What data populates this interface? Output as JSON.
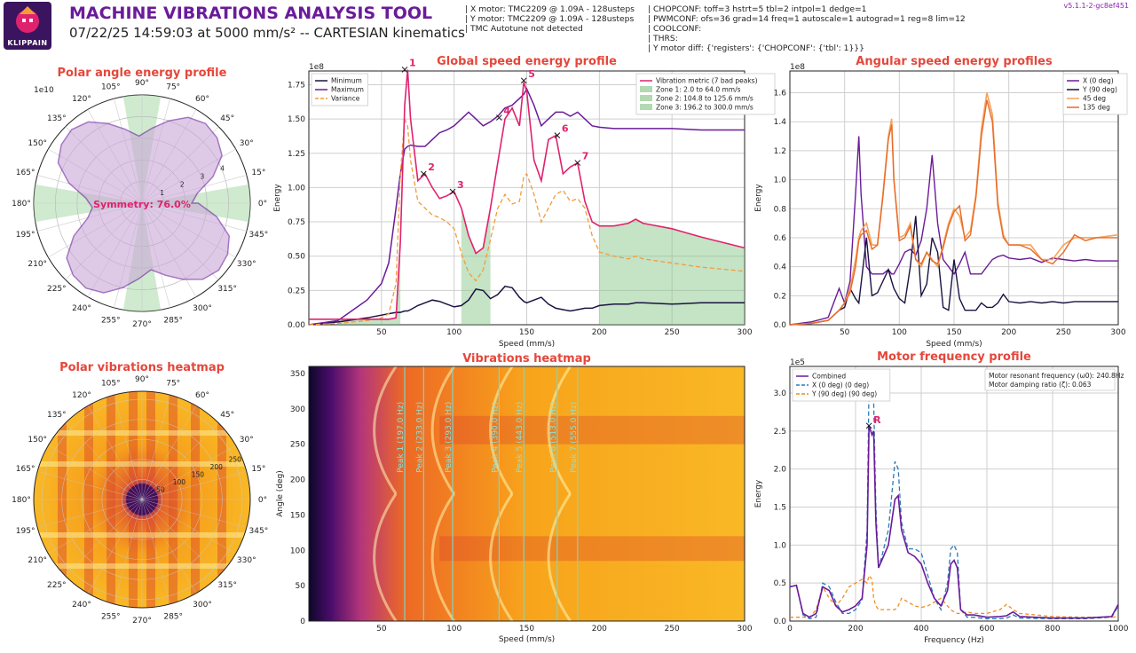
{
  "header": {
    "logo_text": "KLIPPAIN",
    "title": "MACHINE VIBRATIONS ANALYSIS TOOL",
    "subtitle": "07/22/25 14:59:03 at 5000 mm/s² -- CARTESIAN kinematics",
    "version": "v5.1.1-2-gc8ef451",
    "info_left": [
      "| X motor: TMC2209 @ 1.09A - 128usteps",
      "| Y motor: TMC2209 @ 1.09A - 128usteps",
      "| TMC Autotune not detected"
    ],
    "info_right": [
      "| CHOPCONF: toff=3 hstrt=5 tbl=2 intpol=1 dedge=1",
      "| PWMCONF: ofs=36 grad=14 freq=1 autoscale=1 autograd=1 reg=8 lim=12",
      "| COOLCONF:",
      "| THRS:",
      "| Y motor diff: {'registers': {'CHOPCONF': {'tbl': 1}}}"
    ]
  },
  "colors": {
    "title_red": "#e5473b",
    "purple": "#6a1b9a",
    "magenta": "#e0226e",
    "orange": "#f39c3a",
    "navy": "#1a1240",
    "zone_green": "#a8d8a8",
    "combined": "#6a1b9a",
    "x_dashed": "#2b7bba",
    "y_dashed": "#f08c1f"
  },
  "chart_data": [
    {
      "type": "polar",
      "title": "Polar angle energy profile",
      "angle_labels": [
        "0°",
        "15°",
        "30°",
        "45°",
        "60°",
        "75°",
        "90°",
        "105°",
        "120°",
        "135°",
        "150°",
        "165°",
        "180°",
        "195°",
        "210°",
        "225°",
        "240°",
        "255°",
        "270°",
        "285°",
        "300°",
        "315°",
        "330°",
        "345°"
      ],
      "radial_labels": [
        "1",
        "2",
        "3",
        "4"
      ],
      "radial_scale": "1e10",
      "annotation": "Symmetry: 76.0%",
      "low_energy_zones_deg": [
        [
          -10,
          10
        ],
        [
          80,
          100
        ],
        [
          170,
          190
        ],
        [
          260,
          280
        ]
      ],
      "profile_r": [
        2.3,
        2.6,
        3.5,
        4.3,
        4.6,
        4.7,
        4.5,
        4.0,
        3.5,
        3.1,
        3.5,
        4.0,
        4.5,
        4.7,
        4.6,
        4.3,
        3.5,
        2.6,
        2.3,
        2.6,
        3.5,
        4.3,
        4.6,
        4.7,
        4.5,
        4.0,
        3.5,
        3.1,
        3.5,
        4.0,
        4.5,
        4.7,
        4.6,
        4.3,
        3.5,
        2.6
      ],
      "r_max": 5.0
    },
    {
      "type": "line",
      "title": "Global speed energy profile",
      "xlabel": "Speed (mm/s)",
      "ylabel": "Energy",
      "y_scale": "1e8",
      "xlim": [
        0,
        300
      ],
      "ylim": [
        0,
        1.85
      ],
      "xticks": [
        50,
        100,
        150,
        200,
        250,
        300
      ],
      "yticks": [
        0.0,
        0.25,
        0.5,
        0.75,
        1.0,
        1.25,
        1.5,
        1.75
      ],
      "legend_left": [
        "Minimum",
        "Maximum",
        "Variance"
      ],
      "legend_right": [
        "Vibration metric (7 bad peaks)",
        "Zone 1: 2.0 to 64.0 mm/s",
        "Zone 2: 104.8 to 125.6 mm/s",
        "Zone 3: 196.2 to 300.0 mm/s"
      ],
      "zones": [
        [
          2,
          64
        ],
        [
          104.8,
          125.6
        ],
        [
          196.2,
          300
        ]
      ],
      "x": [
        0,
        20,
        40,
        50,
        55,
        60,
        63,
        66,
        68,
        70,
        75,
        80,
        85,
        90,
        95,
        100,
        105,
        110,
        115,
        120,
        125,
        130,
        135,
        140,
        145,
        148,
        150,
        155,
        160,
        165,
        170,
        175,
        180,
        185,
        190,
        195,
        200,
        210,
        220,
        225,
        230,
        250,
        270,
        300
      ],
      "series": [
        {
          "name": "Minimum",
          "values": [
            0.0,
            0.02,
            0.05,
            0.07,
            0.08,
            0.09,
            0.09,
            0.1,
            0.1,
            0.11,
            0.14,
            0.16,
            0.18,
            0.17,
            0.15,
            0.13,
            0.14,
            0.18,
            0.26,
            0.25,
            0.19,
            0.22,
            0.28,
            0.27,
            0.2,
            0.17,
            0.16,
            0.18,
            0.2,
            0.15,
            0.12,
            0.11,
            0.1,
            0.11,
            0.12,
            0.12,
            0.14,
            0.15,
            0.15,
            0.16,
            0.16,
            0.15,
            0.16,
            0.16
          ]
        },
        {
          "name": "Maximum",
          "values": [
            0.0,
            0.03,
            0.18,
            0.3,
            0.45,
            0.85,
            1.1,
            1.28,
            1.3,
            1.31,
            1.3,
            1.3,
            1.35,
            1.4,
            1.42,
            1.45,
            1.5,
            1.55,
            1.5,
            1.45,
            1.48,
            1.52,
            1.58,
            1.6,
            1.65,
            1.68,
            1.72,
            1.6,
            1.45,
            1.5,
            1.55,
            1.55,
            1.52,
            1.55,
            1.5,
            1.45,
            1.44,
            1.43,
            1.43,
            1.43,
            1.43,
            1.43,
            1.42,
            1.42
          ]
        },
        {
          "name": "Variance",
          "values": [
            0.0,
            0.01,
            0.03,
            0.05,
            0.08,
            0.3,
            1.1,
            1.5,
            1.45,
            1.2,
            0.9,
            0.85,
            0.8,
            0.78,
            0.75,
            0.7,
            0.52,
            0.38,
            0.32,
            0.4,
            0.62,
            0.85,
            0.95,
            0.88,
            0.9,
            1.08,
            1.1,
            0.95,
            0.75,
            0.85,
            0.95,
            0.98,
            0.9,
            0.92,
            0.85,
            0.65,
            0.53,
            0.5,
            0.48,
            0.5,
            0.48,
            0.45,
            0.42,
            0.39
          ]
        },
        {
          "name": "Vibration metric (7 bad peaks)",
          "values": [
            0.04,
            0.04,
            0.04,
            0.04,
            0.04,
            0.05,
            0.6,
            1.6,
            1.86,
            1.5,
            1.05,
            1.1,
            1.0,
            0.92,
            0.94,
            0.97,
            0.85,
            0.65,
            0.52,
            0.56,
            0.85,
            1.18,
            1.5,
            1.58,
            1.45,
            1.77,
            1.7,
            1.2,
            1.05,
            1.35,
            1.38,
            1.1,
            1.15,
            1.18,
            0.9,
            0.75,
            0.72,
            0.72,
            0.74,
            0.77,
            0.74,
            0.7,
            0.64,
            0.56
          ]
        }
      ],
      "peaks": [
        {
          "label": "1",
          "x": 66,
          "y": 1.86
        },
        {
          "label": "2",
          "x": 79,
          "y": 1.1
        },
        {
          "label": "3",
          "x": 99,
          "y": 0.97
        },
        {
          "label": "4",
          "x": 131,
          "y": 1.51
        },
        {
          "label": "5",
          "x": 148,
          "y": 1.78
        },
        {
          "label": "6",
          "x": 171,
          "y": 1.38
        },
        {
          "label": "7",
          "x": 185,
          "y": 1.18
        }
      ]
    },
    {
      "type": "line",
      "title": "Angular speed energy profiles",
      "xlabel": "Speed (mm/s)",
      "ylabel": "Energy",
      "y_scale": "1e8",
      "xlim": [
        0,
        300
      ],
      "ylim": [
        0,
        1.75
      ],
      "xticks": [
        50,
        100,
        150,
        200,
        250,
        300
      ],
      "yticks": [
        0.0,
        0.2,
        0.4,
        0.6,
        0.8,
        1.0,
        1.2,
        1.4,
        1.6
      ],
      "x": [
        0,
        20,
        35,
        45,
        50,
        55,
        60,
        63,
        65,
        70,
        75,
        80,
        85,
        90,
        93,
        95,
        100,
        105,
        110,
        115,
        120,
        125,
        130,
        135,
        140,
        145,
        150,
        155,
        160,
        165,
        170,
        175,
        180,
        185,
        190,
        195,
        200,
        210,
        220,
        230,
        240,
        250,
        260,
        270,
        280,
        300
      ],
      "series": [
        {
          "name": "X (0 deg)",
          "values": [
            0.0,
            0.02,
            0.05,
            0.25,
            0.15,
            0.3,
            0.9,
            1.3,
            0.9,
            0.4,
            0.35,
            0.35,
            0.35,
            0.38,
            0.35,
            0.35,
            0.42,
            0.5,
            0.52,
            0.48,
            0.58,
            0.8,
            1.17,
            0.7,
            0.45,
            0.4,
            0.35,
            0.42,
            0.5,
            0.35,
            0.35,
            0.35,
            0.4,
            0.45,
            0.47,
            0.48,
            0.46,
            0.45,
            0.46,
            0.43,
            0.46,
            0.45,
            0.44,
            0.45,
            0.44,
            0.44
          ]
        },
        {
          "name": "Y (90 deg)",
          "values": [
            0.0,
            0.01,
            0.03,
            0.1,
            0.12,
            0.25,
            0.18,
            0.15,
            0.28,
            0.6,
            0.2,
            0.22,
            0.3,
            0.38,
            0.3,
            0.25,
            0.18,
            0.15,
            0.4,
            0.75,
            0.2,
            0.28,
            0.6,
            0.5,
            0.12,
            0.1,
            0.45,
            0.18,
            0.1,
            0.1,
            0.1,
            0.15,
            0.12,
            0.12,
            0.15,
            0.21,
            0.16,
            0.15,
            0.16,
            0.15,
            0.16,
            0.15,
            0.16,
            0.16,
            0.16,
            0.16
          ]
        },
        {
          "name": "45 deg",
          "values": [
            0.0,
            0.01,
            0.03,
            0.1,
            0.15,
            0.25,
            0.45,
            0.6,
            0.65,
            0.7,
            0.55,
            0.55,
            0.9,
            1.3,
            1.42,
            1.0,
            0.6,
            0.62,
            0.7,
            0.45,
            0.4,
            0.5,
            0.45,
            0.4,
            0.55,
            0.7,
            0.8,
            0.75,
            0.6,
            0.65,
            0.9,
            1.35,
            1.6,
            1.45,
            0.85,
            0.62,
            0.55,
            0.55,
            0.55,
            0.45,
            0.45,
            0.55,
            0.6,
            0.6,
            0.6,
            0.62
          ]
        },
        {
          "name": "135 deg",
          "values": [
            0.0,
            0.01,
            0.03,
            0.1,
            0.15,
            0.22,
            0.4,
            0.58,
            0.62,
            0.65,
            0.52,
            0.55,
            0.88,
            1.28,
            1.38,
            1.0,
            0.58,
            0.6,
            0.68,
            0.45,
            0.42,
            0.5,
            0.44,
            0.42,
            0.53,
            0.68,
            0.78,
            0.82,
            0.58,
            0.62,
            0.88,
            1.3,
            1.55,
            1.4,
            0.82,
            0.6,
            0.55,
            0.55,
            0.52,
            0.45,
            0.42,
            0.5,
            0.62,
            0.58,
            0.6,
            0.6
          ]
        }
      ]
    },
    {
      "type": "heatmap",
      "title": "Polar vibrations heatmap",
      "angle_labels": [
        "0°",
        "15°",
        "30°",
        "45°",
        "60°",
        "75°",
        "90°",
        "105°",
        "120°",
        "135°",
        "150°",
        "165°",
        "180°",
        "195°",
        "210°",
        "225°",
        "240°",
        "255°",
        "270°",
        "285°",
        "300°",
        "315°",
        "330°",
        "345°"
      ],
      "radial_labels": [
        "50",
        "100",
        "150",
        "200",
        "250"
      ]
    },
    {
      "type": "heatmap",
      "title": "Vibrations heatmap",
      "xlabel": "Speed (mm/s)",
      "ylabel": "Angle (deg)",
      "xlim": [
        0,
        300
      ],
      "ylim": [
        0,
        360
      ],
      "xticks": [
        50,
        100,
        150,
        200,
        250,
        300
      ],
      "yticks": [
        0,
        50,
        100,
        150,
        200,
        250,
        300,
        350
      ],
      "peak_lines": [
        {
          "x": 66,
          "label": "Peak 1 (197.0 Hz)"
        },
        {
          "x": 79,
          "label": "Peak 2 (233.0 Hz)"
        },
        {
          "x": 99,
          "label": "Peak 3 (293.0 Hz)"
        },
        {
          "x": 131,
          "label": "Peak 4 (390.0 Hz)"
        },
        {
          "x": 148,
          "label": "Peak 5 (443.0 Hz)"
        },
        {
          "x": 171,
          "label": "Peak 6 (513.0 Hz)"
        },
        {
          "x": 185,
          "label": "Peak 7 (555.0 Hz)"
        }
      ]
    },
    {
      "type": "line",
      "title": "Motor frequency profile",
      "xlabel": "Frequency (Hz)",
      "ylabel": "Energy",
      "y_scale": "1e5",
      "xlim": [
        0,
        1000
      ],
      "ylim": [
        0,
        3.35
      ],
      "xticks": [
        0,
        200,
        400,
        600,
        800,
        1000
      ],
      "yticks": [
        0.0,
        0.5,
        1.0,
        1.5,
        2.0,
        2.5,
        3.0
      ],
      "legend": [
        "Combined",
        "X (0 deg) (0 deg)",
        "Y (90 deg) (90 deg)"
      ],
      "notes": [
        "Motor resonant frequency (ω0): 240.8Hz",
        "Motor damping ratio (ζ): 0.063"
      ],
      "x": [
        0,
        20,
        40,
        60,
        80,
        100,
        120,
        140,
        160,
        180,
        200,
        220,
        235,
        241,
        250,
        255,
        262,
        270,
        280,
        300,
        320,
        330,
        340,
        360,
        380,
        400,
        420,
        440,
        460,
        480,
        490,
        500,
        510,
        520,
        540,
        560,
        600,
        640,
        660,
        680,
        700,
        800,
        900,
        980,
        1000
      ],
      "series": [
        {
          "name": "Combined",
          "values": [
            0.45,
            0.47,
            0.1,
            0.05,
            0.1,
            0.45,
            0.4,
            0.2,
            0.12,
            0.15,
            0.2,
            0.3,
            1.0,
            2.57,
            2.45,
            2.5,
            1.3,
            0.7,
            0.8,
            1.0,
            1.6,
            1.65,
            1.2,
            0.9,
            0.85,
            0.75,
            0.5,
            0.3,
            0.2,
            0.4,
            0.75,
            0.8,
            0.7,
            0.15,
            0.08,
            0.08,
            0.05,
            0.06,
            0.07,
            0.12,
            0.06,
            0.04,
            0.04,
            0.06,
            0.22
          ]
        },
        {
          "name": "X (0 deg) (0 deg)",
          "values": [
            0.45,
            0.47,
            0.08,
            0.03,
            0.05,
            0.5,
            0.45,
            0.25,
            0.1,
            0.1,
            0.15,
            0.28,
            1.2,
            3.15,
            3.05,
            2.9,
            1.5,
            0.7,
            0.85,
            1.2,
            2.1,
            2.0,
            1.3,
            0.95,
            0.95,
            0.9,
            0.6,
            0.3,
            0.15,
            0.5,
            0.95,
            1.0,
            0.9,
            0.15,
            0.05,
            0.05,
            0.03,
            0.03,
            0.04,
            0.08,
            0.04,
            0.03,
            0.03,
            0.05,
            0.2
          ]
        },
        {
          "name": "Y (90 deg) (90 deg)",
          "values": [
            0.05,
            0.05,
            0.05,
            0.05,
            0.15,
            0.45,
            0.3,
            0.2,
            0.3,
            0.45,
            0.5,
            0.55,
            0.5,
            0.6,
            0.55,
            0.3,
            0.2,
            0.15,
            0.15,
            0.15,
            0.15,
            0.2,
            0.3,
            0.25,
            0.2,
            0.18,
            0.2,
            0.25,
            0.3,
            0.2,
            0.15,
            0.12,
            0.1,
            0.1,
            0.12,
            0.1,
            0.1,
            0.15,
            0.22,
            0.15,
            0.1,
            0.06,
            0.05,
            0.05,
            0.06
          ]
        }
      ],
      "peak": {
        "label": "R",
        "x": 241,
        "y": 2.57
      }
    }
  ]
}
